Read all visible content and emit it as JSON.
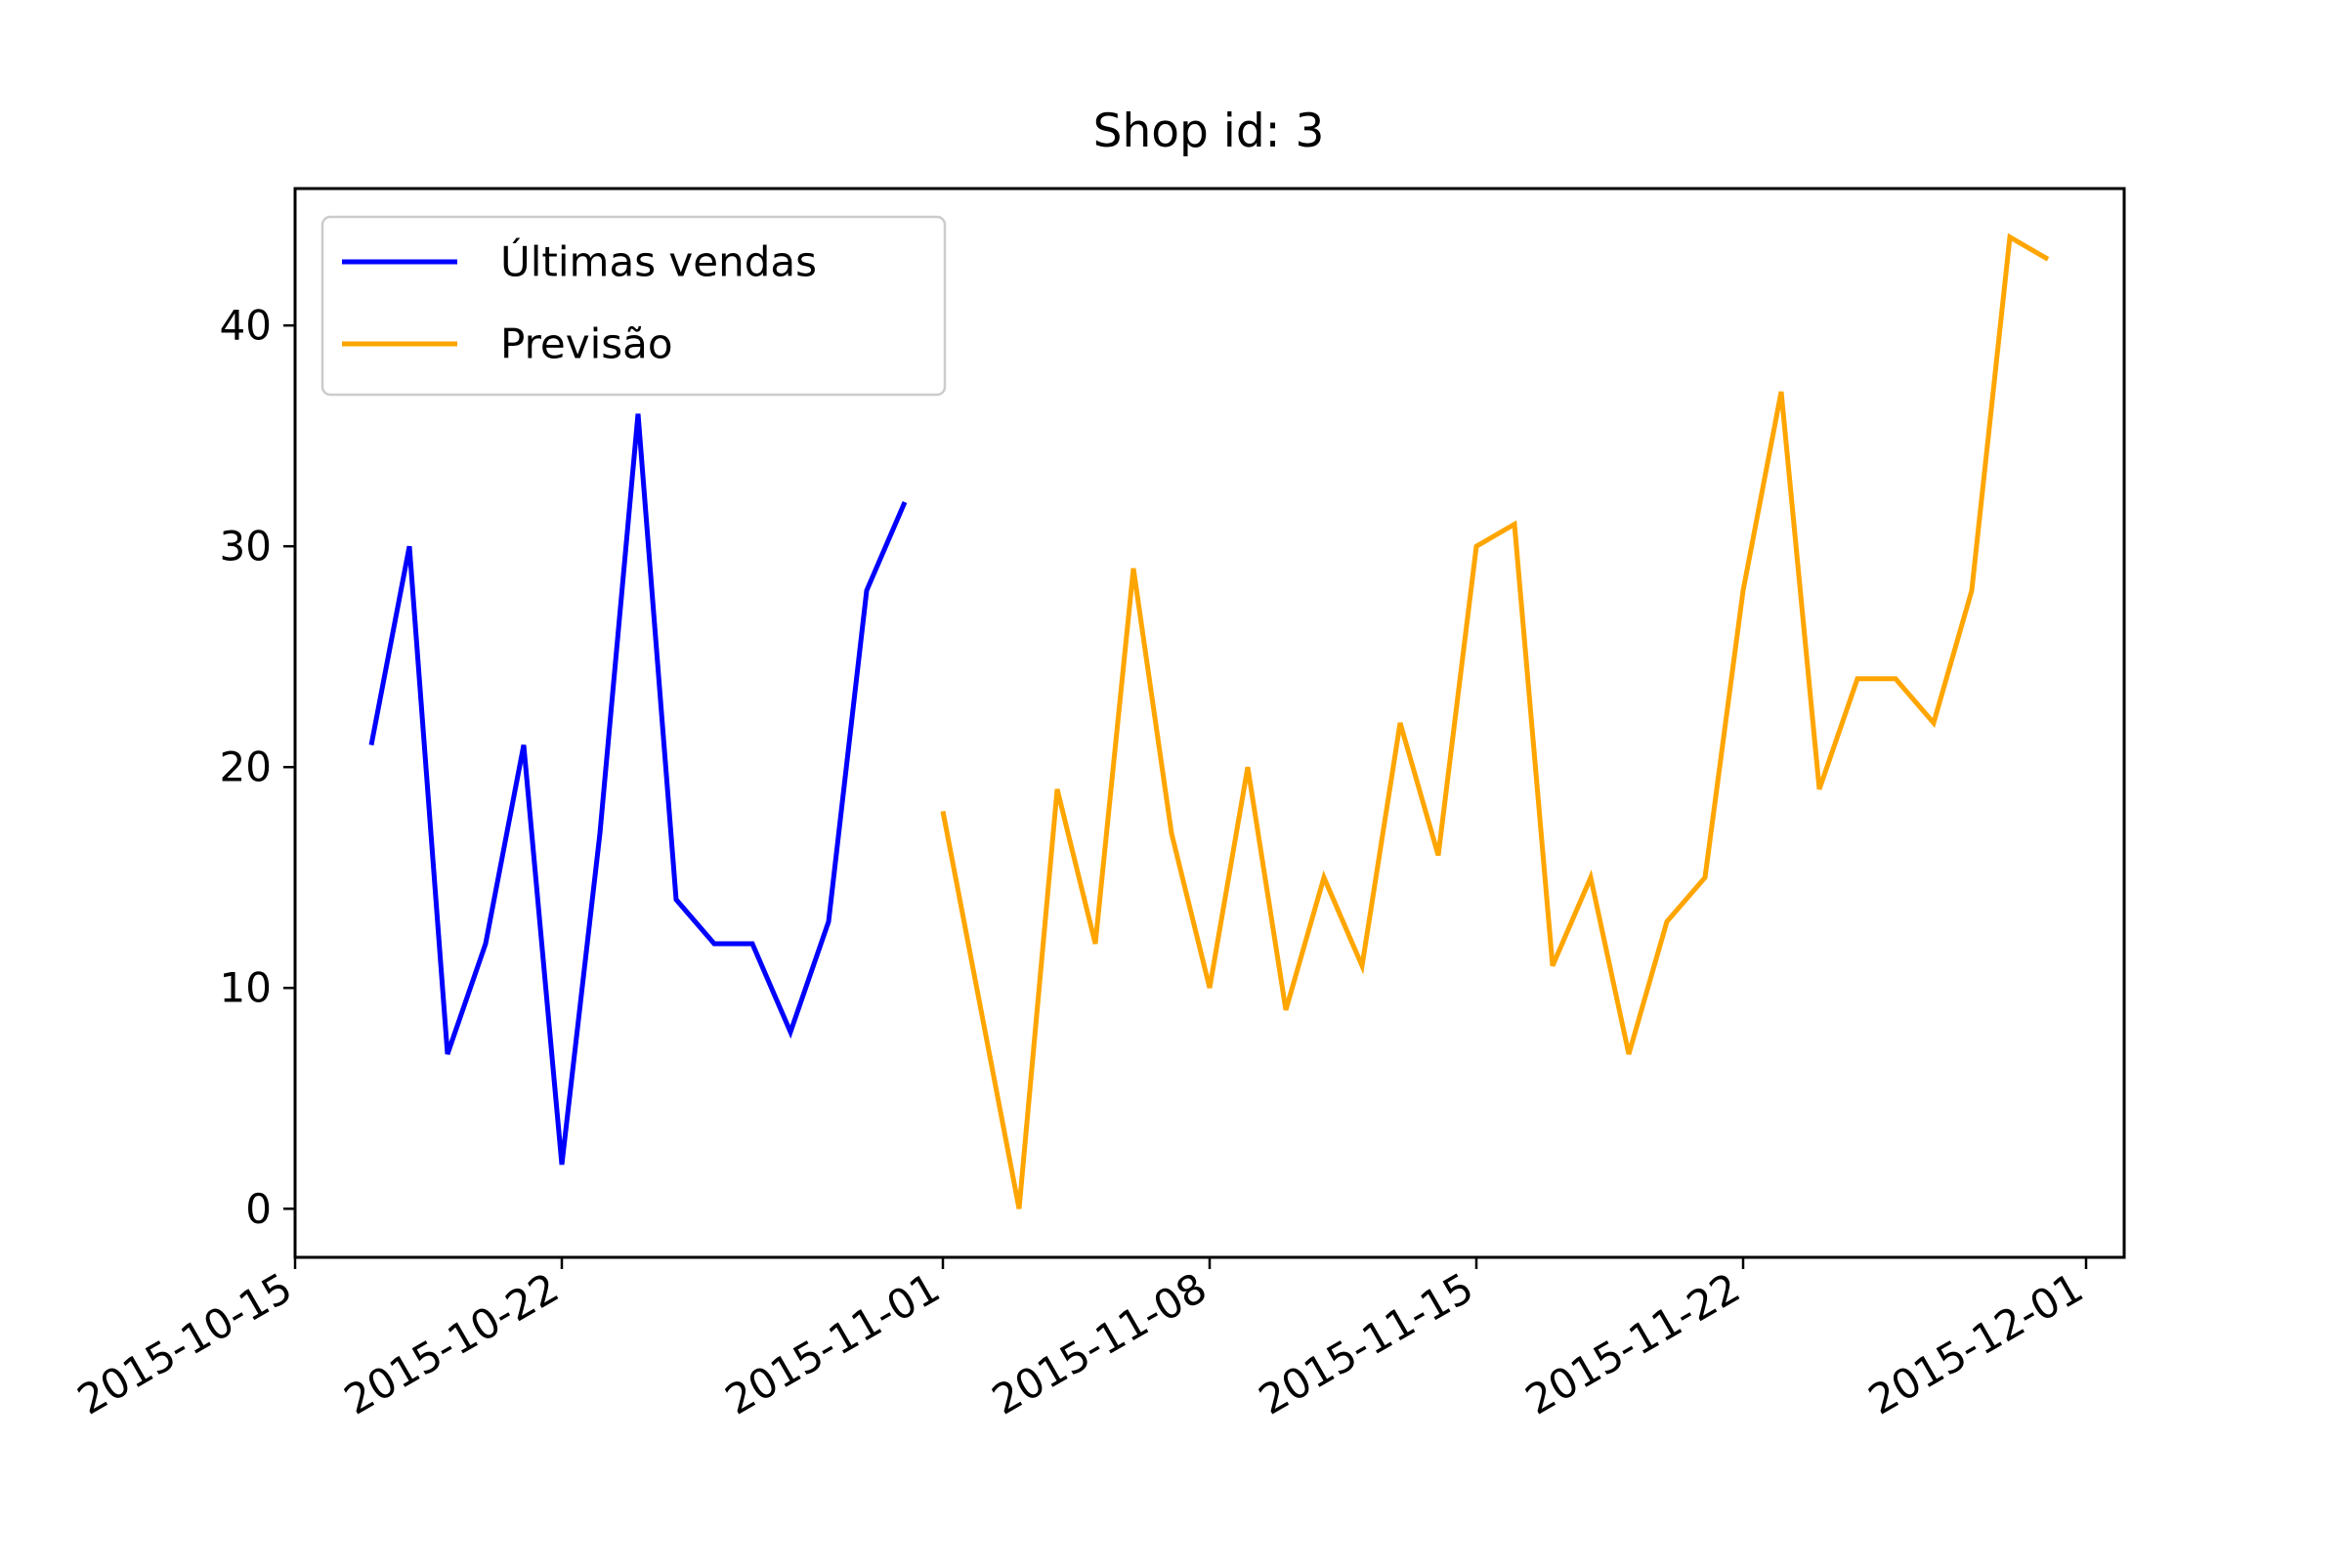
{
  "chart_data": {
    "type": "line",
    "title": "Shop id: 3",
    "xlabel": "",
    "ylabel": "",
    "xlim": [
      "2015-10-15",
      "2015-12-02"
    ],
    "ylim": [
      -2.2,
      46.2
    ],
    "x_ticks": [
      "2015-10-15",
      "2015-10-22",
      "2015-11-01",
      "2015-11-08",
      "2015-11-15",
      "2015-11-22",
      "2015-12-01"
    ],
    "y_ticks": [
      0,
      10,
      20,
      30,
      40
    ],
    "grid": false,
    "legend_position": "upper-left",
    "series": [
      {
        "name": "Últimas vendas",
        "color": "#0000ff",
        "x": [
          "2015-10-17",
          "2015-10-18",
          "2015-10-19",
          "2015-10-20",
          "2015-10-21",
          "2015-10-22",
          "2015-10-23",
          "2015-10-24",
          "2015-10-25",
          "2015-10-26",
          "2015-10-27",
          "2015-10-28",
          "2015-10-29",
          "2015-10-30",
          "2015-10-31"
        ],
        "y": [
          21,
          30,
          7,
          12,
          21,
          2,
          17,
          36,
          14,
          12,
          12,
          8,
          13,
          28,
          32
        ]
      },
      {
        "name": "Previsão",
        "color": "#ffa500",
        "x": [
          "2015-11-01",
          "2015-11-02",
          "2015-11-03",
          "2015-11-04",
          "2015-11-05",
          "2015-11-06",
          "2015-11-07",
          "2015-11-08",
          "2015-11-09",
          "2015-11-10",
          "2015-11-11",
          "2015-11-12",
          "2015-11-13",
          "2015-11-14",
          "2015-11-15",
          "2015-11-16",
          "2015-11-17",
          "2015-11-18",
          "2015-11-19",
          "2015-11-20",
          "2015-11-21",
          "2015-11-22",
          "2015-11-23",
          "2015-11-24",
          "2015-11-25",
          "2015-11-26",
          "2015-11-27",
          "2015-11-28",
          "2015-11-29",
          "2015-11-30"
        ],
        "y": [
          18,
          9,
          0,
          19,
          12,
          29,
          17,
          10,
          20,
          9,
          15,
          11,
          22,
          16,
          30,
          31,
          11,
          15,
          7,
          13,
          15,
          28,
          37,
          19,
          24,
          24,
          22,
          28,
          44,
          43
        ]
      }
    ]
  }
}
